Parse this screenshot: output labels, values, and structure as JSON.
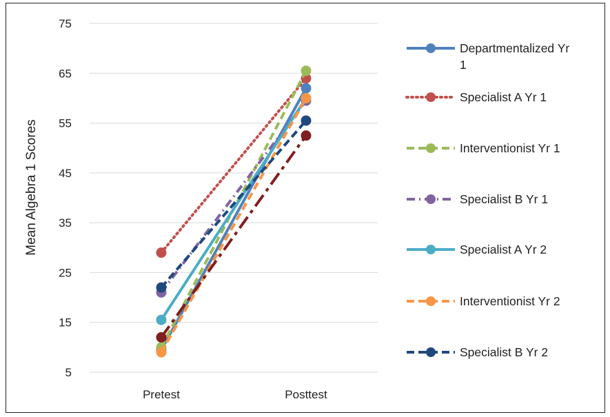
{
  "chart_data": {
    "type": "line",
    "title": "",
    "xlabel": "",
    "ylabel": "Mean Algebra 1 Scores",
    "categories": [
      "Pretest",
      "Posttest"
    ],
    "ylim": [
      5,
      75
    ],
    "yticks": [
      5,
      15,
      25,
      35,
      45,
      55,
      65,
      75
    ],
    "grid": true,
    "legend_position": "right",
    "series": [
      {
        "name": "Departmentalized Yr 1",
        "values": [
          9.5,
          62
        ],
        "color": "#4F81BD",
        "dash": "solid"
      },
      {
        "name": "Specialist A Yr 1",
        "values": [
          29,
          64
        ],
        "color": "#C0504D",
        "dash": "dot"
      },
      {
        "name": "Interventionist Yr 1",
        "values": [
          10,
          65.5
        ],
        "color": "#9BBB59",
        "dash": "dash"
      },
      {
        "name": "Specialist B Yr 1",
        "values": [
          21,
          59.5
        ],
        "color": "#8064A2",
        "dash": "dashdot"
      },
      {
        "name": "Specialist A Yr 2",
        "values": [
          15.5,
          60
        ],
        "color": "#4BACC6",
        "dash": "solid"
      },
      {
        "name": "Interventionist Yr 2",
        "values": [
          9,
          60
        ],
        "color": "#F79646",
        "dash": "dash"
      },
      {
        "name": "Specialist B Yr 2",
        "values": [
          22,
          55.5
        ],
        "color": "#1F497D",
        "dash": "dash"
      },
      {
        "name": "",
        "values": [
          12,
          52.5
        ],
        "color": "#7F1F1F",
        "dash": "longdashdot"
      }
    ]
  }
}
